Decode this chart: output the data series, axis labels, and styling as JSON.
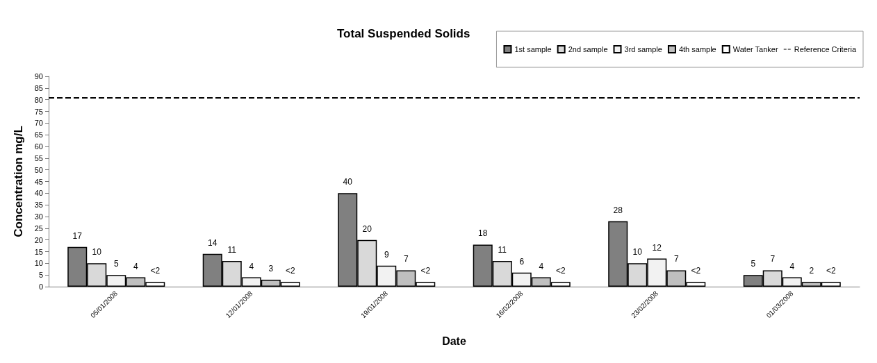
{
  "chart_data": {
    "type": "bar",
    "title": "Total Suspended Solids",
    "xlabel": "Date",
    "ylabel": "Concentration mg/L",
    "categories": [
      "05/01/2008",
      "12/01/2008",
      "19/01/2008",
      "16/02/2008",
      "23/02/2008",
      "01/03/2008"
    ],
    "series": [
      {
        "name": "1st sample",
        "color": "#808080",
        "values": [
          17,
          14,
          40,
          18,
          28,
          5
        ]
      },
      {
        "name": "2nd sample",
        "color": "#d9d9d9",
        "values": [
          10,
          11,
          20,
          11,
          10,
          7
        ]
      },
      {
        "name": "3rd sample",
        "color": "#f2f2f2",
        "values": [
          5,
          4,
          9,
          6,
          12,
          4
        ]
      },
      {
        "name": "4th sample",
        "color": "#bfbfbf",
        "values": [
          4,
          3,
          7,
          4,
          7,
          2
        ]
      },
      {
        "name": "Water Tanker",
        "color": "#ffffff",
        "values": [
          2,
          2,
          2,
          2,
          2,
          2
        ],
        "value_labels": [
          "<2",
          "<2",
          "<2",
          "<2",
          "<2",
          "<2"
        ]
      }
    ],
    "ylim": [
      0,
      90
    ],
    "yticks": [
      0,
      5,
      10,
      15,
      20,
      25,
      30,
      35,
      40,
      45,
      50,
      55,
      60,
      65,
      70,
      75,
      80,
      85,
      90
    ],
    "ref_lines": [
      {
        "axis": "y",
        "value": 81,
        "label": "Reference Criteria",
        "color": "#000000",
        "line_style": "dashed"
      }
    ],
    "data_labels": true,
    "grid": false,
    "legend": "top right"
  }
}
